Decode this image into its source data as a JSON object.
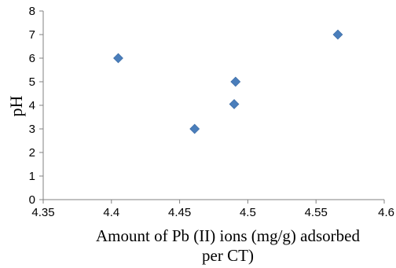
{
  "chart_data": {
    "type": "scatter",
    "title": "",
    "xlabel_line1": "Amount of Pb (II) ions (mg/g) adsorbed",
    "xlabel_line2": "per CT)",
    "ylabel": "pH",
    "xlim": [
      4.35,
      4.6
    ],
    "ylim": [
      0,
      8
    ],
    "x_ticks": [
      4.35,
      4.4,
      4.45,
      4.5,
      4.55,
      4.6
    ],
    "x_tick_labels": [
      "4.35",
      "4.4",
      "4.45",
      "4.5",
      "4.55",
      "4.6"
    ],
    "y_ticks": [
      0,
      1,
      2,
      3,
      4,
      5,
      6,
      7,
      8
    ],
    "y_tick_labels": [
      "0",
      "1",
      "2",
      "3",
      "4",
      "5",
      "6",
      "7",
      "8"
    ],
    "grid": false,
    "legend": "none",
    "marker": "diamond",
    "marker_color": "#4a7ebb",
    "points": [
      {
        "x": 4.405,
        "y": 6
      },
      {
        "x": 4.461,
        "y": 3
      },
      {
        "x": 4.49,
        "y": 4.05
      },
      {
        "x": 4.491,
        "y": 5
      },
      {
        "x": 4.566,
        "y": 7
      }
    ]
  }
}
